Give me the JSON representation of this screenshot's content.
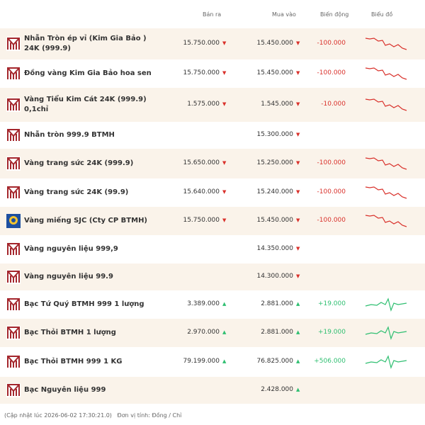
{
  "table": {
    "header": [
      "Bán ra",
      "Mua vào",
      "Biến động",
      "Biểu đồ"
    ],
    "rows": [
      {
        "name": "Nhẫn Tròn ép vỉ (Kim Gia Bảo ) 24K (999.9)",
        "sell": "15.750.000",
        "sell_arrow": "▼",
        "buy": "15.450.000",
        "buy_arrow": "▼",
        "change": "-100.000"
      },
      {
        "name": "Đồng vàng Kim Gia Bảo hoa sen",
        "sell": "15.750.000",
        "sell_arrow": "▼",
        "buy": "15.450.000",
        "buy_arrow": "▼",
        "change": "-100.000"
      },
      {
        "name": "Vàng Tiểu Kim Cát 24K (999.9) 0,1chỉ",
        "sell": "1.575.000",
        "sell_arrow": "▼",
        "buy": "1.545.000",
        "buy_arrow": "▼",
        "change": "-10.000"
      },
      {
        "name": "Nhẫn tròn 999.9 BTMH",
        "buy": "15.300.000",
        "buy_arrow": "▼"
      },
      {
        "name": "Vàng trang sức 24K (999.9)",
        "sell": "15.650.000",
        "sell_arrow": "▼",
        "buy": "15.250.000",
        "buy_arrow": "▼",
        "change": "-100.000"
      },
      {
        "name": "Vàng trang sức 24K (99.9)",
        "sell": "15.640.000",
        "sell_arrow": "▼",
        "buy": "15.240.000",
        "buy_arrow": "▼",
        "change": "-100.000"
      },
      {
        "name": "Vàng miếng SJC (Cty CP BTMH)",
        "sell": "15.750.000",
        "sell_arrow": "▼",
        "buy": "15.450.000",
        "buy_arrow": "▼",
        "change": "-100.000",
        "logo": "sjc"
      },
      {
        "name": "Vàng nguyên liệu 999,9",
        "buy": "14.350.000",
        "buy_arrow": "▼"
      },
      {
        "name": "Vàng nguyên liệu 99.9",
        "buy": "14.300.000",
        "buy_arrow": "▼"
      },
      {
        "name": "Bạc Tứ Quý BTMH 999 1 lượng",
        "sell": "3.389.000",
        "sell_arrow": "▲",
        "buy": "2.881.000",
        "buy_arrow": "▲",
        "change": "+19.000"
      },
      {
        "name": "Bạc Thỏi BTMH 1 lượng",
        "sell": "2.970.000",
        "sell_arrow": "▲",
        "buy": "2.881.000",
        "buy_arrow": "▲",
        "change": "+19.000"
      },
      {
        "name": "Bạc Thỏi BTMH 999 1 KG",
        "sell": "79.199.000",
        "sell_arrow": "▲",
        "buy": "76.825.000",
        "buy_arrow": "▲",
        "change": "+506.000"
      },
      {
        "name": "Bạc Nguyên liệu 999",
        "buy": "2.428.000",
        "buy_arrow": "▲"
      }
    ]
  },
  "footer": {
    "updated": "(Cập nhật lúc 2026-06-02 17:30:21.0)",
    "unit": "Đơn vị tính: Đồng / Chỉ"
  }
}
